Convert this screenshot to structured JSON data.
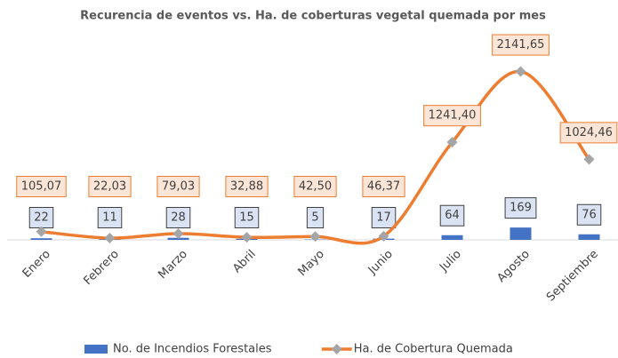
{
  "chart_data": {
    "type": "bar-line",
    "title": "Recurencia de eventos vs. Ha. de coberturas vegetal quemada por mes",
    "categories": [
      "Enero",
      "Febrero",
      "Marzo",
      "Abril",
      "Mayo",
      "Junio",
      "Julio",
      "Agosto",
      "Septiembre"
    ],
    "series": [
      {
        "name": "No. de Incendios Forestales",
        "type": "bar",
        "color": "#4472c4",
        "values": [
          22,
          11,
          28,
          15,
          5,
          17,
          64,
          169,
          76
        ]
      },
      {
        "name": "Ha. de Cobertura Quemada",
        "type": "line",
        "axis": "y2",
        "color": "#ed7d31",
        "marker_color": "#a5a5a5",
        "smooth": true,
        "values": [
          105.07,
          22.03,
          79.03,
          32.88,
          42.5,
          46.37,
          1241.4,
          2141.65,
          1024.46
        ],
        "value_labels": [
          "105,07",
          "22,03",
          "79,03",
          "32,88",
          "42,50",
          "46,37",
          "1241,40",
          "2141,65",
          "1024,46"
        ]
      }
    ],
    "ylim": [
      0,
      2800
    ],
    "y2lim": [
      0,
      2600
    ],
    "legend": "bottom"
  }
}
